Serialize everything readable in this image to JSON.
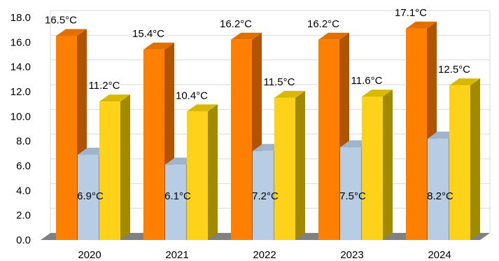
{
  "chart_data": {
    "type": "bar",
    "title": "",
    "xlabel": "",
    "ylabel": "",
    "ylim": [
      0,
      18
    ],
    "y_tick_step": 2,
    "y_tick_decimals": 1,
    "grid": "horizontal",
    "legend": "none",
    "style": "3d-clustered-column",
    "unit": "°C",
    "categories": [
      "2020",
      "2021",
      "2022",
      "2023",
      "2024"
    ],
    "series": [
      {
        "values": [
          16.5,
          15.4,
          16.2,
          16.2,
          17.1
        ],
        "colors": {
          "front": "#FF8000",
          "side": "#B05400",
          "top": "#E07000"
        },
        "label_position": "above-left"
      },
      {
        "values": [
          6.9,
          6.1,
          7.2,
          7.5,
          8.2
        ],
        "colors": {
          "front": "#B8CCE4",
          "side": "#7F93AC",
          "top": "#9FB3CC"
        },
        "label_position": "inside"
      },
      {
        "values": [
          11.2,
          10.4,
          11.5,
          11.6,
          12.5
        ],
        "colors": {
          "front": "#FFD21A",
          "side": "#A08A00",
          "top": "#D9B800"
        },
        "label_position": "above-left"
      }
    ]
  }
}
